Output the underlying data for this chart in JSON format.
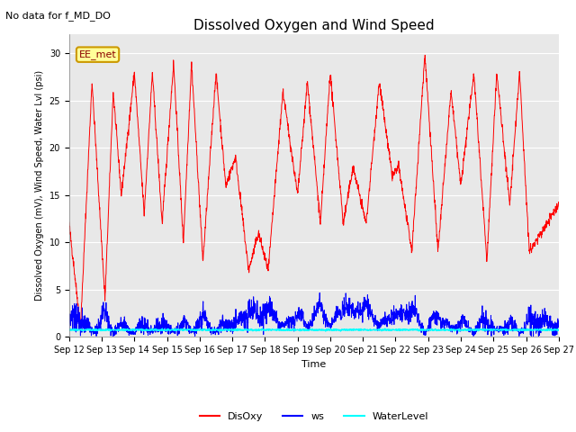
{
  "title": "Dissolved Oxygen and Wind Speed",
  "top_left_note": "No data for f_MD_DO",
  "ylabel": "Dissolved Oxygen (mV), Wind Speed, Water Lvl (psi)",
  "xlabel": "Time",
  "ylim": [
    0,
    32
  ],
  "yticks": [
    0,
    5,
    10,
    15,
    20,
    25,
    30
  ],
  "xticklabels": [
    "Sep 12",
    "Sep 13",
    "Sep 14",
    "Sep 15",
    "Sep 16",
    "Sep 17",
    "Sep 18",
    "Sep 19",
    "Sep 20",
    "Sep 21",
    "Sep 22",
    "Sep 23",
    "Sep 24",
    "Sep 25",
    "Sep 26",
    "Sep 27"
  ],
  "legend_labels": [
    "DisOxy",
    "ws",
    "WaterLevel"
  ],
  "legend_colors": [
    "red",
    "blue",
    "cyan"
  ],
  "bg_color": "#e8e8e8",
  "box_label": "EE_met",
  "box_facecolor": "#ffff99",
  "box_edgecolor": "#cc9900",
  "title_fontsize": 11,
  "ylabel_fontsize": 7,
  "xlabel_fontsize": 8,
  "tick_fontsize": 7,
  "legend_fontsize": 8
}
